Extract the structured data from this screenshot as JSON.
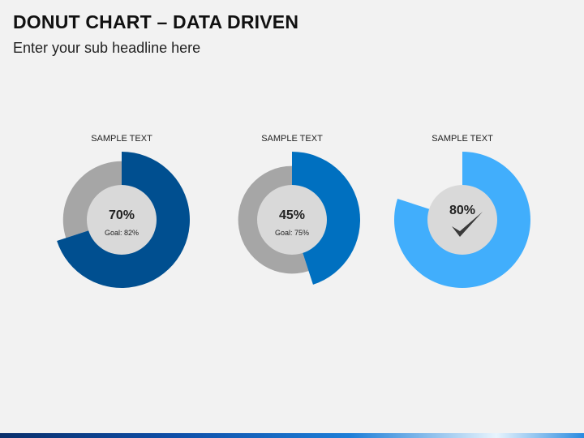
{
  "slide": {
    "title": "DONUT CHART – DATA DRIVEN",
    "subtitle": "Enter your sub headline here"
  },
  "chart_data": [
    {
      "type": "pie",
      "title": "SAMPLE TEXT",
      "value_percent": 70,
      "value_label": "70%",
      "goal_percent": 82,
      "goal_label": "Goal: 82%",
      "icon": "",
      "colors": {
        "value": "#004f90",
        "remainder": "#a6a6a6",
        "center": "#d9d9d9"
      }
    },
    {
      "type": "pie",
      "title": "SAMPLE TEXT",
      "value_percent": 45,
      "value_label": "45%",
      "goal_percent": 75,
      "goal_label": "Goal: 75%",
      "icon": "",
      "colors": {
        "value": "#0070c0",
        "remainder": "#a6a6a6",
        "center": "#d9d9d9"
      }
    },
    {
      "type": "pie",
      "title": "SAMPLE TEXT",
      "value_percent": 80,
      "value_label": "80%",
      "goal_percent": null,
      "goal_label": "",
      "icon": "checkmark-icon",
      "colors": {
        "value": "#41aefc",
        "remainder": "none",
        "center": "#d9d9d9"
      }
    }
  ]
}
